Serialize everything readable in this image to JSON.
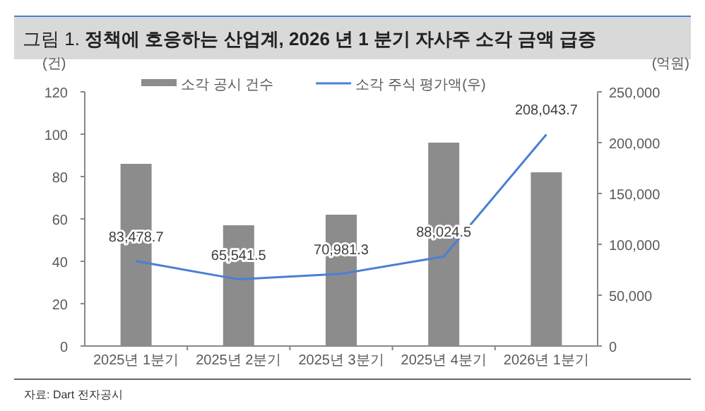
{
  "chart_data": {
    "type": "bar",
    "title": "그림 1.  **정책에 호응하는 산업계, 2026 년 1 분기 자사주 소각 금액 급증**",
    "ylabel": "(건)",
    "y2label": "(억원)",
    "categories": [
      "2025년 1분기",
      "2025년 2분기",
      "2025년 3분기",
      "2025년 4분기",
      "2026년 1분기"
    ],
    "series": [
      {
        "name": "소각 공시 건수",
        "color": "#8c8c8c",
        "values": [
          86,
          57,
          62,
          96,
          82
        ]
      },
      {
        "name": "소각 주식 평가액(우)",
        "type": "line",
        "axis": "y2",
        "color": "#4a7fd4",
        "values": [
          83478.7,
          65541.5,
          70981.3,
          88024.5,
          208043.7
        ],
        "value_labels": [
          "83,478.7",
          "65,541.5",
          "70,981.3",
          "88,024.5",
          "208,043.7"
        ]
      }
    ],
    "ylim": [
      0,
      120
    ],
    "yticks": [
      0,
      20,
      40,
      60,
      80,
      100,
      120
    ],
    "y2lim": [
      0,
      250000
    ],
    "y2ticks": [
      {
        "value": 0,
        "label": "0"
      },
      {
        "value": 50000,
        "label": "50,000"
      },
      {
        "value": 100000,
        "label": "100,000"
      },
      {
        "value": 150000,
        "label": "150,000"
      },
      {
        "value": 200000,
        "label": "200,000"
      },
      {
        "value": 250000,
        "label": "250,000"
      }
    ],
    "legend": "top",
    "annotations": [
      "자료: Dart 전자공시"
    ]
  }
}
